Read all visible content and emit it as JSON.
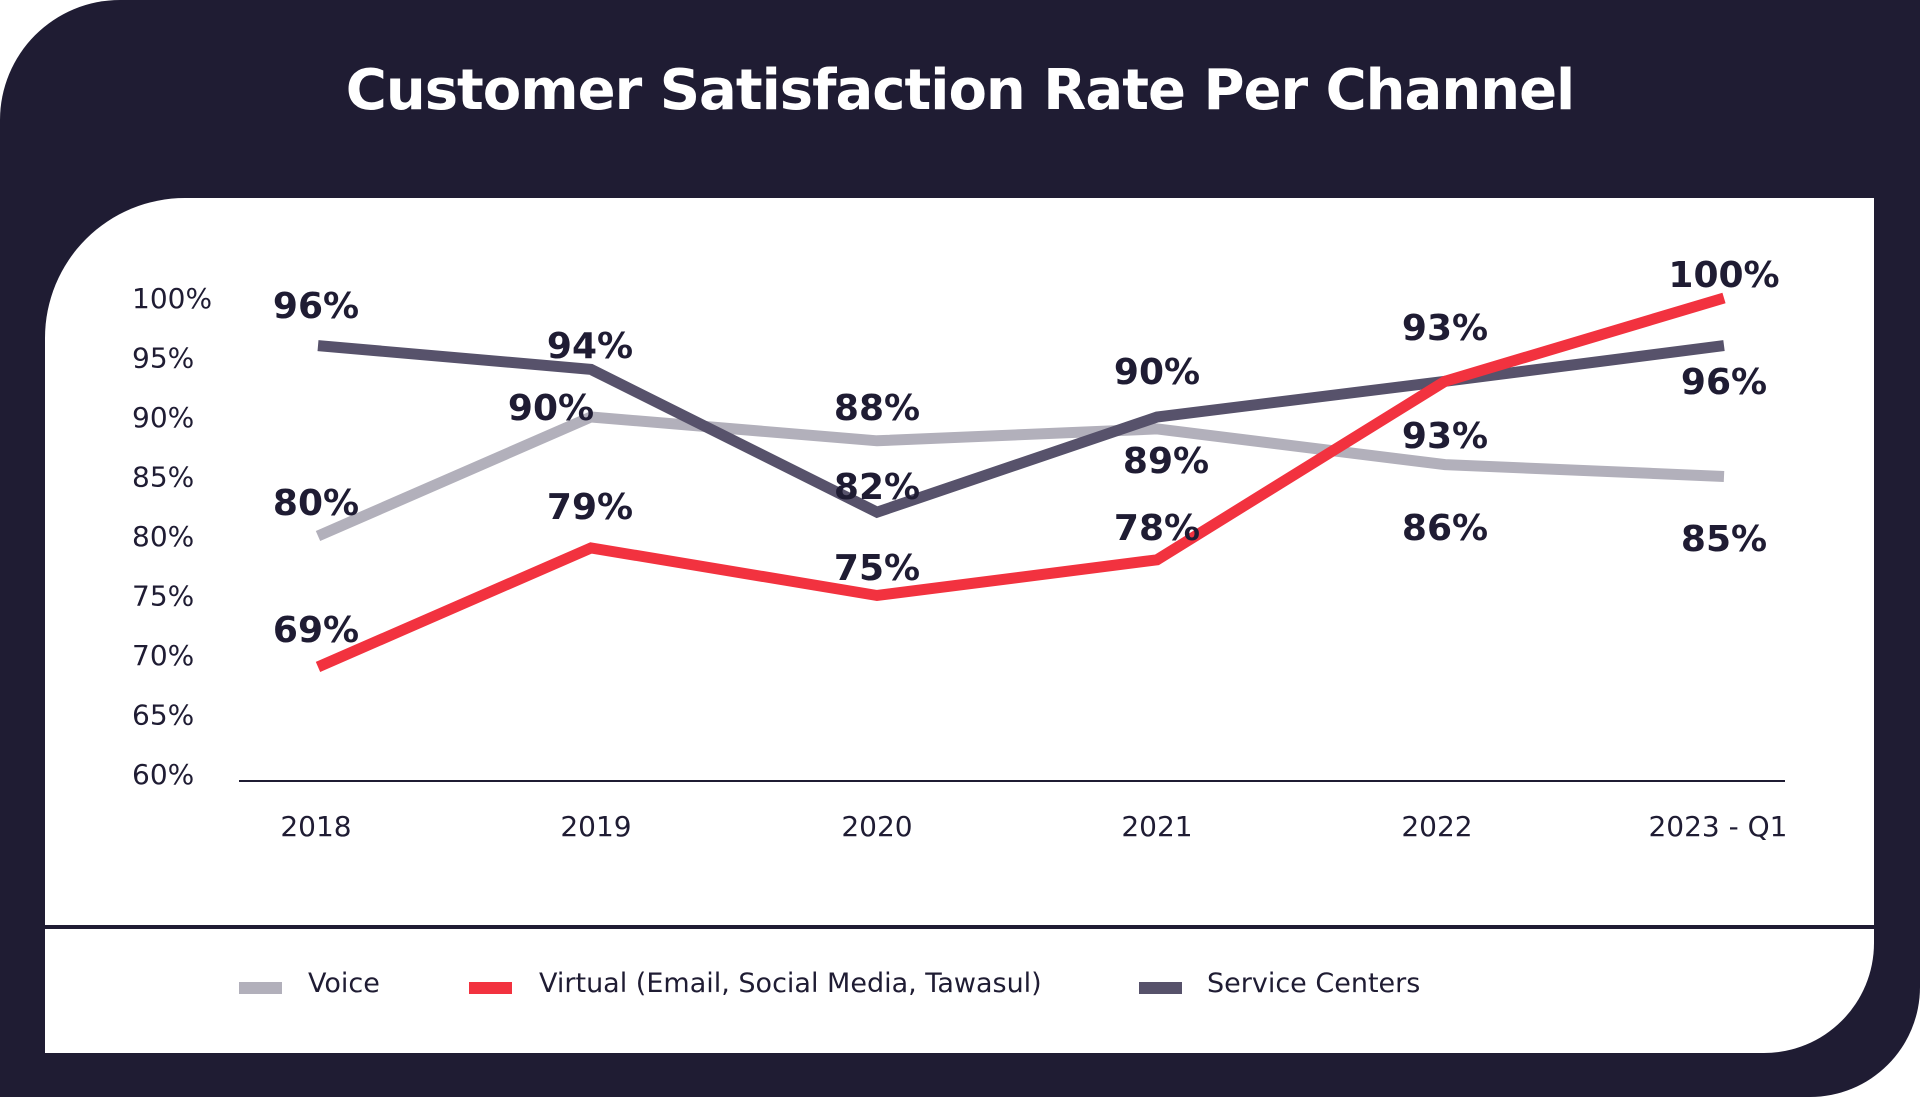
{
  "chart_data": {
    "type": "line",
    "title": "Customer Satisfaction Rate Per Channel",
    "categories": [
      "2018",
      "2019",
      "2020",
      "2021",
      "2022",
      "2023 - Q1"
    ],
    "ylim": [
      60,
      100
    ],
    "yticks": [
      "100%",
      "95%",
      "90%",
      "85%",
      "80%",
      "75%",
      "70%",
      "65%",
      "60%"
    ],
    "grid": false,
    "legend_position": "bottom",
    "series": [
      {
        "name": "Voice",
        "color": "#b2b0bb",
        "values": [
          80,
          90,
          88,
          89,
          86,
          85
        ],
        "labels": [
          "80%",
          "90%",
          "88%",
          "89%",
          "86%",
          "85%"
        ]
      },
      {
        "name": "Virtual (Email, Social Media, Tawasul)",
        "color": "#f2323f",
        "values": [
          69,
          79,
          75,
          78,
          93,
          100
        ],
        "labels": [
          "69%",
          "79%",
          "75%",
          "78%",
          "93%",
          "100%"
        ]
      },
      {
        "name": "Service Centers",
        "color": "#57526b",
        "values": [
          96,
          94,
          82,
          90,
          93,
          96
        ],
        "labels": [
          "96%",
          "94%",
          "82%",
          "90%",
          "93%",
          "96%"
        ]
      }
    ]
  }
}
